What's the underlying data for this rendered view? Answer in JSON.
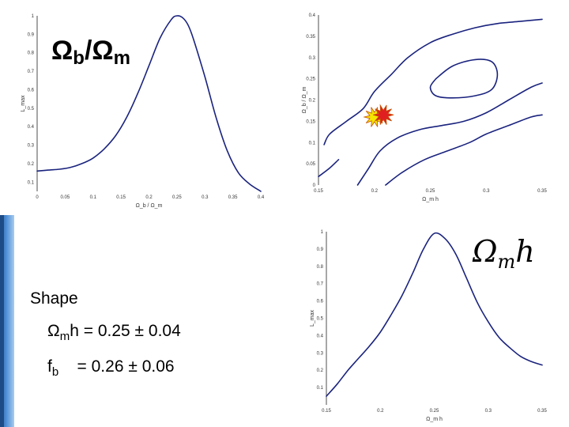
{
  "overlays": {
    "ob_om": {
      "base": "Ω",
      "sub1": "b",
      "slash": "/",
      "base2": "Ω",
      "sub2": "m"
    },
    "omh": {
      "base": "Ω",
      "sub": "m",
      "tail": "h"
    }
  },
  "shape_text": {
    "title": "Shape",
    "line1": {
      "sym": "Ω",
      "sub": "m",
      "tail": "h",
      "value": "= 0.25 ± 0.04"
    },
    "line2": {
      "sym": "f",
      "sub": "b",
      "value": "= 0.26 ± 0.06"
    }
  },
  "colors": {
    "curve": "#1a237e",
    "star_yellow": "#f5e600",
    "star_red": "#e02020",
    "sidebar": "#2a5fa5"
  },
  "chart_data": [
    {
      "type": "line",
      "title": "",
      "xlabel": "Ω_b / Ω_m",
      "ylabel": "L_max",
      "xlim": [
        0,
        0.4
      ],
      "ylim": [
        0.05,
        1
      ],
      "xticks": [
        "0",
        "0.05",
        "0.1",
        "0.15",
        "0.2",
        "0.25",
        "0.3",
        "0.35",
        "0.4"
      ],
      "yticks": [
        "0.1",
        "0.2",
        "0.3",
        "0.4",
        "0.5",
        "0.6",
        "0.7",
        "0.8",
        "0.9",
        "1"
      ],
      "series": [
        {
          "x": [
            0,
            0.02,
            0.04,
            0.06,
            0.08,
            0.1,
            0.12,
            0.14,
            0.16,
            0.18,
            0.2,
            0.22,
            0.24,
            0.25,
            0.26,
            0.27,
            0.28,
            0.3,
            0.32,
            0.34,
            0.36,
            0.38,
            0.4
          ],
          "y": [
            0.16,
            0.165,
            0.17,
            0.18,
            0.2,
            0.23,
            0.28,
            0.35,
            0.45,
            0.58,
            0.73,
            0.88,
            0.98,
            1.0,
            0.99,
            0.95,
            0.87,
            0.67,
            0.45,
            0.27,
            0.15,
            0.09,
            0.05
          ]
        }
      ]
    },
    {
      "type": "contour",
      "title": "",
      "xlabel": "Ω_m h",
      "ylabel": "Ω_b / Ω_m",
      "xlim": [
        0.15,
        0.35
      ],
      "ylim": [
        0,
        0.4
      ],
      "xticks": [
        "0.15",
        "0.2",
        "0.25",
        "0.3",
        "0.35"
      ],
      "yticks": [
        "0",
        "0.05",
        "0.1",
        "0.15",
        "0.2",
        "0.25",
        "0.3",
        "0.35",
        "0.4"
      ],
      "contours": [
        {
          "level": "inner",
          "closed": true,
          "points": [
            [
              0.255,
              0.25
            ],
            [
              0.27,
              0.28
            ],
            [
              0.29,
              0.295
            ],
            [
              0.305,
              0.29
            ],
            [
              0.31,
              0.26
            ],
            [
              0.305,
              0.225
            ],
            [
              0.29,
              0.21
            ],
            [
              0.27,
              0.205
            ],
            [
              0.255,
              0.21
            ],
            [
              0.25,
              0.23
            ],
            [
              0.255,
              0.25
            ]
          ]
        },
        {
          "level": "outer",
          "closed": false,
          "points": [
            [
              0.155,
              0.095
            ],
            [
              0.16,
              0.12
            ],
            [
              0.175,
              0.15
            ],
            [
              0.19,
              0.18
            ],
            [
              0.2,
              0.22
            ],
            [
              0.215,
              0.26
            ],
            [
              0.23,
              0.3
            ],
            [
              0.25,
              0.335
            ],
            [
              0.27,
              0.355
            ],
            [
              0.29,
              0.37
            ],
            [
              0.31,
              0.38
            ],
            [
              0.33,
              0.385
            ],
            [
              0.35,
              0.39
            ]
          ]
        },
        {
          "level": "outer",
          "closed": false,
          "points": [
            [
              0.185,
              0.0
            ],
            [
              0.195,
              0.04
            ],
            [
              0.205,
              0.08
            ],
            [
              0.22,
              0.11
            ],
            [
              0.24,
              0.13
            ],
            [
              0.26,
              0.14
            ],
            [
              0.28,
              0.15
            ],
            [
              0.3,
              0.17
            ],
            [
              0.32,
              0.2
            ],
            [
              0.34,
              0.23
            ],
            [
              0.35,
              0.24
            ]
          ]
        },
        {
          "level": "outer",
          "closed": false,
          "points": [
            [
              0.21,
              0.0
            ],
            [
              0.225,
              0.03
            ],
            [
              0.245,
              0.06
            ],
            [
              0.265,
              0.08
            ],
            [
              0.285,
              0.1
            ],
            [
              0.3,
              0.12
            ],
            [
              0.32,
              0.14
            ],
            [
              0.34,
              0.16
            ],
            [
              0.35,
              0.165
            ]
          ]
        },
        {
          "level": "outer",
          "closed": false,
          "points": [
            [
              0.15,
              0.02
            ],
            [
              0.16,
              0.04
            ],
            [
              0.168,
              0.06
            ]
          ]
        }
      ],
      "markers": [
        {
          "x": 0.2,
          "y": 0.16,
          "color": "yellow"
        },
        {
          "x": 0.208,
          "y": 0.165,
          "color": "red"
        }
      ]
    },
    {
      "type": "line",
      "title": "",
      "xlabel": "Ω_m h",
      "ylabel": "L_max",
      "xlim": [
        0.15,
        0.35
      ],
      "ylim": [
        0,
        1
      ],
      "xticks": [
        "0.15",
        "0.2",
        "0.25",
        "0.3",
        "0.35"
      ],
      "yticks": [
        "0.1",
        "0.2",
        "0.3",
        "0.4",
        "0.5",
        "0.6",
        "0.7",
        "0.8",
        "0.9",
        "1"
      ],
      "series": [
        {
          "x": [
            0.15,
            0.16,
            0.17,
            0.18,
            0.19,
            0.2,
            0.21,
            0.22,
            0.23,
            0.24,
            0.25,
            0.26,
            0.27,
            0.28,
            0.29,
            0.3,
            0.31,
            0.32,
            0.33,
            0.34,
            0.35
          ],
          "y": [
            0.05,
            0.12,
            0.2,
            0.27,
            0.34,
            0.42,
            0.52,
            0.63,
            0.76,
            0.9,
            0.99,
            0.96,
            0.87,
            0.73,
            0.59,
            0.48,
            0.39,
            0.33,
            0.28,
            0.25,
            0.23
          ]
        }
      ]
    }
  ]
}
